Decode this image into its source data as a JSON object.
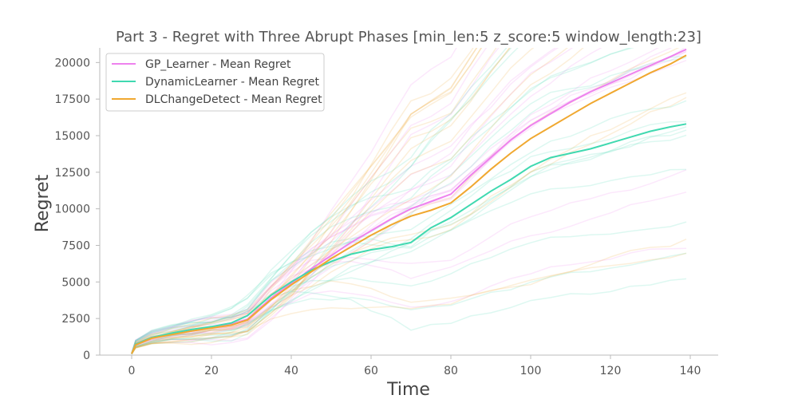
{
  "chart_data": {
    "type": "line",
    "title": "Part 3 - Regret with Three Abrupt Phases [min_len:5 z_score:5 window_length:23]",
    "xlabel": "Time",
    "ylabel": "Regret",
    "xlim": [
      -8,
      147
    ],
    "ylim": [
      0,
      21000
    ],
    "xticks": [
      0,
      20,
      40,
      60,
      80,
      100,
      120,
      140
    ],
    "yticks": [
      0,
      2500,
      5000,
      7500,
      10000,
      12500,
      15000,
      17500,
      20000
    ],
    "grid": false,
    "legend_position": "top-left",
    "series": [
      {
        "name": "GP_Learner - Mean Regret",
        "color": "#ee82ee",
        "x": [
          0,
          1,
          5,
          10,
          15,
          20,
          25,
          29,
          35,
          40,
          45,
          50,
          55,
          60,
          65,
          70,
          75,
          80,
          85,
          90,
          95,
          100,
          105,
          110,
          115,
          120,
          125,
          130,
          135,
          139
        ],
        "y": [
          100,
          750,
          1200,
          1450,
          1650,
          1900,
          2100,
          2450,
          3900,
          4900,
          5900,
          6800,
          7700,
          8500,
          9300,
          10000,
          10500,
          11000,
          12300,
          13500,
          14700,
          15700,
          16500,
          17300,
          18000,
          18600,
          19200,
          19800,
          20400,
          20900
        ]
      },
      {
        "name": "DynamicLearner - Mean Regret",
        "color": "#40d9b0",
        "x": [
          0,
          1,
          5,
          10,
          15,
          20,
          25,
          29,
          35,
          40,
          45,
          50,
          55,
          60,
          65,
          70,
          75,
          80,
          85,
          90,
          95,
          100,
          105,
          110,
          115,
          120,
          125,
          130,
          135,
          139
        ],
        "y": [
          100,
          750,
          1200,
          1500,
          1750,
          1950,
          2200,
          2700,
          4100,
          5000,
          5800,
          6400,
          6900,
          7200,
          7400,
          7700,
          8700,
          9400,
          10300,
          11200,
          12000,
          12900,
          13500,
          13800,
          14100,
          14500,
          14900,
          15300,
          15600,
          15800
        ]
      },
      {
        "name": "DLChangeDetect - Mean Regret",
        "color": "#f0a830",
        "x": [
          0,
          1,
          5,
          10,
          15,
          20,
          25,
          29,
          35,
          40,
          45,
          50,
          55,
          60,
          65,
          70,
          75,
          80,
          85,
          90,
          95,
          100,
          105,
          110,
          115,
          120,
          125,
          130,
          135,
          139
        ],
        "y": [
          100,
          700,
          1150,
          1400,
          1650,
          1850,
          2050,
          2400,
          3800,
          4800,
          5700,
          6600,
          7400,
          8200,
          8900,
          9500,
          9900,
          10400,
          11500,
          12700,
          13800,
          14800,
          15600,
          16400,
          17200,
          17900,
          18600,
          19300,
          19900,
          20500
        ]
      }
    ]
  }
}
